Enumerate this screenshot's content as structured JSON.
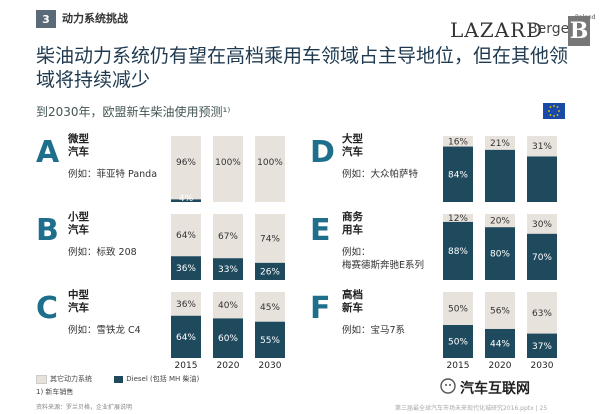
{
  "header": {
    "section_number": "3",
    "section_title": "动力系统挑战",
    "brand_lazard": "LAZARD",
    "brand_roland": "Roland",
    "brand_berger": "Berger",
    "brand_b": "B"
  },
  "title": "柴油动力系统仍有望在高档乘用车领域占主导地位，但在其他领域将持续减少",
  "subtitle": "到2030年，欧盟新车柴油使用预测¹⁾",
  "colors": {
    "diesel": "#1f4a5e",
    "other": "#e8e2dc",
    "accent": "#1e6f8c",
    "flag": "#1a4aa8"
  },
  "chart_data": {
    "type": "bar",
    "stacked": true,
    "ylim": [
      0,
      100
    ],
    "categories": [
      "2015",
      "2020",
      "2030"
    ],
    "panels": [
      {
        "letter": "A",
        "title": [
          "微型",
          "汽车"
        ],
        "example": "例如：菲亚特 Panda",
        "diesel": [
          4,
          0,
          0
        ],
        "other": [
          96,
          100,
          100
        ],
        "diesel_labels": [
          "4%",
          "",
          ""
        ],
        "other_labels": [
          "96%",
          "100%",
          "100%"
        ]
      },
      {
        "letter": "B",
        "title": [
          "小型",
          "汽车"
        ],
        "example": "例如：标致 208",
        "diesel": [
          36,
          33,
          26
        ],
        "other": [
          64,
          67,
          74
        ],
        "diesel_labels": [
          "36%",
          "33%",
          "26%"
        ],
        "other_labels": [
          "64%",
          "67%",
          "74%"
        ]
      },
      {
        "letter": "C",
        "title": [
          "中型",
          "汽车"
        ],
        "example": "例如：雪铁龙 C4",
        "diesel": [
          64,
          60,
          55
        ],
        "other": [
          36,
          40,
          45
        ],
        "diesel_labels": [
          "64%",
          "60%",
          "55%"
        ],
        "other_labels": [
          "36%",
          "40%",
          "45%"
        ]
      },
      {
        "letter": "D",
        "title": [
          "大型",
          "汽车"
        ],
        "example": "例如：大众帕萨特",
        "diesel": [
          84,
          79,
          69
        ],
        "other": [
          16,
          21,
          31
        ],
        "diesel_labels": [
          "84%",
          "",
          ""
        ],
        "other_labels": [
          "16%",
          "21%",
          "31%"
        ]
      },
      {
        "letter": "E",
        "title": [
          "商务",
          "用车"
        ],
        "example": "例如：",
        "example2": "梅赛德斯奔驰E系列",
        "diesel": [
          88,
          80,
          70
        ],
        "other": [
          12,
          20,
          30
        ],
        "diesel_labels": [
          "88%",
          "80%",
          "70%"
        ],
        "other_labels": [
          "12%",
          "20%",
          "30%"
        ]
      },
      {
        "letter": "F",
        "title": [
          "高档",
          "新车"
        ],
        "example": "例如：宝马7系",
        "diesel": [
          50,
          44,
          37
        ],
        "other": [
          50,
          56,
          63
        ],
        "diesel_labels": [
          "50%",
          "44%",
          "37%"
        ],
        "other_labels": [
          "50%",
          "56%",
          "63%"
        ]
      }
    ],
    "legend": [
      {
        "name": "其它动力系统",
        "color": "#e8e2dc"
      },
      {
        "name": "Diesel (包括 MH 柴油)",
        "color": "#1f4a5e"
      }
    ]
  },
  "legend_note": "1) 新车销售",
  "source": "资料来源：罗兰贝格，企业扩展说明",
  "footer": "第三届最全球汽车市场未来现代化城研究2016.pptx  |  25",
  "watermark": "汽车互联网"
}
